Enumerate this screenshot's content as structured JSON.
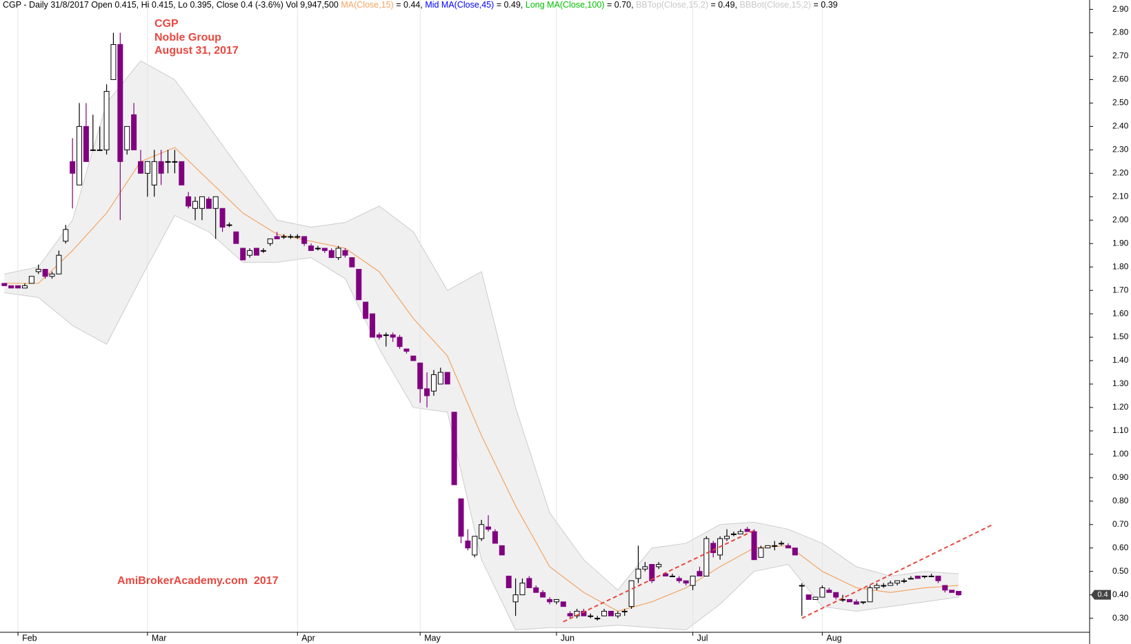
{
  "chart_data": {
    "type": "candlestick",
    "header": [
      {
        "text": "CGP - Daily 31/8/2017 Open 0.415, Hi 0.415, Lo 0.395, Close 0.4 (-3.6%) Vol 9,947,500 ",
        "color": "#000000"
      },
      {
        "text": "MA(Close,15)",
        "color": "#f4a460"
      },
      {
        "text": " = 0.44, ",
        "color": "#000000"
      },
      {
        "text": "Mid MA(Close,45)",
        "color": "#0000ff"
      },
      {
        "text": " = 0.49, ",
        "color": "#000000"
      },
      {
        "text": "Long MA(Close,100)",
        "color": "#00c000"
      },
      {
        "text": " = 0.70, ",
        "color": "#000000"
      },
      {
        "text": "BBTop(Close,15,2)",
        "color": "#c8c8c8"
      },
      {
        "text": " = 0.49, ",
        "color": "#000000"
      },
      {
        "text": "BBBot(Close,15,2)",
        "color": "#c8c8c8"
      },
      {
        "text": " = 0.39",
        "color": "#000000"
      }
    ],
    "annotations": [
      "CGP",
      "Noble Group",
      "August 31, 2017"
    ],
    "watermark": "AmiBrokerAcademy.com  2017",
    "annotation_color": "#e8473f",
    "categories": [
      null,
      null,
      "Feb",
      null,
      null,
      null,
      null,
      null,
      null,
      null,
      null,
      null,
      null,
      null,
      null,
      null,
      null,
      null,
      null,
      null,
      null,
      "Mar",
      null,
      null,
      null,
      null,
      null,
      null,
      null,
      null,
      null,
      null,
      null,
      null,
      null,
      null,
      null,
      null,
      null,
      null,
      null,
      null,
      null,
      "Apr",
      null,
      null,
      null,
      null,
      null,
      null,
      null,
      null,
      null,
      null,
      null,
      null,
      null,
      null,
      null,
      null,
      null,
      "May",
      null,
      null,
      null,
      null,
      null,
      null,
      null,
      null,
      null,
      null,
      null,
      null,
      null,
      null,
      null,
      null,
      null,
      null,
      null,
      "Jun",
      null,
      null,
      null,
      null,
      null,
      null,
      null,
      null,
      null,
      null,
      null,
      null,
      null,
      null,
      null,
      null,
      null,
      null,
      null,
      "Jul",
      null,
      null,
      null,
      null,
      null,
      null,
      null,
      null,
      null,
      null,
      null,
      null,
      null,
      null,
      null,
      null,
      null,
      null,
      "Aug",
      null,
      null,
      null,
      null,
      null,
      null,
      null,
      null,
      null,
      null,
      null,
      null,
      null,
      null,
      null,
      null,
      null,
      null,
      null,
      null
    ],
    "open": [
      1.73,
      1.72,
      1.72,
      1.71,
      1.73,
      1.78,
      1.79,
      1.76,
      1.77,
      1.91,
      2.25,
      2.15,
      2.4,
      2.3,
      2.3,
      2.3,
      2.6,
      2.75,
      2.3,
      2.45,
      2.25,
      2.2,
      2.15,
      2.25,
      2.25,
      2.25,
      2.25,
      2.1,
      2.05,
      2.05,
      2.09,
      2.05,
      2.05,
      1.98,
      1.95,
      1.88,
      1.85,
      1.88,
      1.87,
      1.9,
      1.93,
      1.93,
      1.93,
      1.93,
      1.93,
      1.89,
      1.88,
      1.88,
      1.87,
      1.84,
      1.87,
      1.84,
      1.79,
      1.65,
      1.6,
      1.51,
      1.51,
      1.51,
      1.5,
      1.45,
      1.42,
      1.39,
      1.28,
      1.27,
      1.3,
      1.35,
      1.18,
      0.81,
      0.63,
      0.57,
      0.64,
      0.69,
      0.67,
      0.61,
      0.48,
      0.37,
      0.4,
      0.47,
      0.43,
      0.41,
      0.38,
      0.37,
      0.37,
      0.32,
      0.31,
      0.33,
      0.31,
      0.3,
      0.31,
      0.33,
      0.31,
      0.33,
      0.35,
      0.47,
      0.51,
      0.53,
      0.52,
      0.49,
      0.48,
      0.47,
      0.46,
      0.44,
      0.5,
      0.48,
      0.62,
      0.57,
      0.64,
      0.66,
      0.66,
      0.68,
      0.67,
      0.56,
      0.6,
      0.61,
      0.62,
      0.61,
      0.6,
      0.44,
      0.4,
      0.38,
      0.39,
      0.42,
      0.41,
      0.38,
      0.38,
      0.37,
      0.37,
      0.37,
      0.43,
      0.44,
      0.44,
      0.45,
      0.46,
      0.47,
      0.48,
      0.48,
      0.48,
      0.48,
      0.44,
      0.42,
      0.415
    ],
    "high": [
      1.73,
      1.72,
      1.72,
      1.73,
      1.76,
      1.81,
      1.79,
      1.78,
      1.87,
      1.98,
      2.35,
      2.5,
      2.5,
      2.45,
      2.4,
      2.58,
      2.8,
      2.8,
      2.4,
      2.5,
      2.3,
      2.25,
      2.3,
      2.3,
      2.3,
      2.3,
      2.25,
      2.12,
      2.1,
      2.1,
      2.1,
      2.1,
      2.05,
      1.99,
      1.95,
      1.88,
      1.88,
      1.88,
      1.88,
      1.92,
      1.95,
      1.94,
      1.94,
      1.94,
      1.93,
      1.9,
      1.89,
      1.88,
      1.88,
      1.89,
      1.88,
      1.84,
      1.79,
      1.65,
      1.6,
      1.52,
      1.52,
      1.52,
      1.51,
      1.45,
      1.42,
      1.39,
      1.35,
      1.36,
      1.37,
      1.35,
      1.18,
      0.81,
      0.68,
      0.65,
      0.72,
      0.74,
      0.68,
      0.61,
      0.48,
      0.47,
      0.47,
      0.48,
      0.44,
      0.42,
      0.39,
      0.38,
      0.37,
      0.33,
      0.34,
      0.34,
      0.32,
      0.31,
      0.34,
      0.33,
      0.33,
      0.34,
      0.46,
      0.61,
      0.54,
      0.53,
      0.54,
      0.49,
      0.49,
      0.48,
      0.46,
      0.48,
      0.52,
      0.65,
      0.63,
      0.65,
      0.68,
      0.67,
      0.68,
      0.69,
      0.68,
      0.61,
      0.61,
      0.63,
      0.63,
      0.62,
      0.6,
      0.45,
      0.4,
      0.39,
      0.44,
      0.43,
      0.41,
      0.4,
      0.38,
      0.38,
      0.37,
      0.44,
      0.45,
      0.45,
      0.46,
      0.46,
      0.47,
      0.48,
      0.48,
      0.48,
      0.49,
      0.48,
      0.44,
      0.42,
      0.415
    ],
    "low": [
      1.72,
      1.71,
      1.71,
      1.71,
      1.73,
      1.77,
      1.75,
      1.75,
      1.77,
      1.9,
      2.05,
      2.15,
      2.25,
      2.3,
      2.3,
      2.28,
      2.6,
      2.0,
      2.28,
      2.3,
      2.2,
      2.1,
      2.1,
      2.15,
      2.2,
      2.2,
      2.15,
      2.05,
      2.0,
      2.0,
      2.05,
      1.92,
      1.95,
      1.97,
      1.9,
      1.83,
      1.84,
      1.85,
      1.86,
      1.89,
      1.92,
      1.92,
      1.92,
      1.92,
      1.89,
      1.87,
      1.87,
      1.86,
      1.84,
      1.83,
      1.84,
      1.8,
      1.66,
      1.58,
      1.5,
      1.49,
      1.46,
      1.48,
      1.45,
      1.43,
      1.4,
      1.22,
      1.2,
      1.25,
      1.3,
      1.3,
      0.87,
      0.62,
      0.59,
      0.56,
      0.63,
      0.67,
      0.62,
      0.57,
      0.43,
      0.31,
      0.4,
      0.43,
      0.41,
      0.39,
      0.36,
      0.36,
      0.35,
      0.3,
      0.3,
      0.31,
      0.3,
      0.29,
      0.31,
      0.31,
      0.3,
      0.31,
      0.34,
      0.45,
      0.5,
      0.45,
      0.51,
      0.48,
      0.48,
      0.45,
      0.44,
      0.42,
      0.48,
      0.48,
      0.56,
      0.55,
      0.63,
      0.65,
      0.66,
      0.67,
      0.55,
      0.56,
      0.6,
      0.59,
      0.61,
      0.6,
      0.57,
      0.31,
      0.38,
      0.38,
      0.39,
      0.41,
      0.38,
      0.37,
      0.37,
      0.36,
      0.36,
      0.37,
      0.42,
      0.43,
      0.44,
      0.44,
      0.45,
      0.47,
      0.47,
      0.47,
      0.48,
      0.45,
      0.41,
      0.41,
      0.395
    ],
    "close": [
      1.72,
      1.71,
      1.71,
      1.72,
      1.76,
      1.79,
      1.76,
      1.77,
      1.85,
      1.96,
      2.2,
      2.4,
      2.25,
      2.3,
      2.3,
      2.55,
      2.75,
      2.25,
      2.4,
      2.3,
      2.2,
      2.25,
      2.25,
      2.2,
      2.25,
      2.25,
      2.15,
      2.06,
      2.08,
      2.1,
      2.05,
      2.1,
      1.97,
      1.98,
      1.9,
      1.83,
      1.87,
      1.85,
      1.87,
      1.92,
      1.92,
      1.93,
      1.93,
      1.93,
      1.9,
      1.87,
      1.88,
      1.87,
      1.84,
      1.88,
      1.85,
      1.8,
      1.66,
      1.58,
      1.5,
      1.5,
      1.51,
      1.5,
      1.46,
      1.44,
      1.4,
      1.28,
      1.25,
      1.34,
      1.35,
      1.3,
      0.87,
      0.65,
      0.6,
      0.65,
      0.7,
      0.68,
      0.62,
      0.57,
      0.43,
      0.4,
      0.45,
      0.43,
      0.41,
      0.39,
      0.37,
      0.38,
      0.35,
      0.31,
      0.33,
      0.31,
      0.31,
      0.3,
      0.33,
      0.31,
      0.32,
      0.33,
      0.46,
      0.51,
      0.52,
      0.46,
      0.53,
      0.48,
      0.48,
      0.46,
      0.45,
      0.48,
      0.48,
      0.64,
      0.58,
      0.64,
      0.65,
      0.66,
      0.67,
      0.67,
      0.55,
      0.6,
      0.61,
      0.61,
      0.62,
      0.6,
      0.57,
      0.44,
      0.38,
      0.39,
      0.43,
      0.41,
      0.39,
      0.38,
      0.37,
      0.36,
      0.37,
      0.43,
      0.44,
      0.44,
      0.45,
      0.46,
      0.46,
      0.47,
      0.47,
      0.48,
      0.48,
      0.46,
      0.42,
      0.41,
      0.4
    ],
    "up_color": "#ffffff",
    "down_color": "#800080",
    "outline_color": "#000000",
    "moving_average": {
      "color": "#f4a460",
      "x": [
        0,
        5,
        10,
        15,
        20,
        25,
        30,
        35,
        40,
        45,
        50,
        55,
        60,
        65,
        70,
        75,
        80,
        85,
        90,
        95,
        100,
        105,
        110,
        115,
        120,
        125,
        130,
        135,
        140
      ],
      "values": [
        1.73,
        1.73,
        1.87,
        2.03,
        2.25,
        2.31,
        2.17,
        2.03,
        1.94,
        1.91,
        1.88,
        1.78,
        1.58,
        1.42,
        1.08,
        0.78,
        0.52,
        0.41,
        0.33,
        0.37,
        0.43,
        0.52,
        0.6,
        0.61,
        0.5,
        0.43,
        0.41,
        0.43,
        0.44
      ]
    },
    "band": {
      "color": "#f0f0f0",
      "edge_color": "#cccccc",
      "x": [
        0,
        5,
        10,
        15,
        20,
        25,
        30,
        35,
        40,
        45,
        50,
        55,
        60,
        65,
        70,
        75,
        80,
        85,
        90,
        95,
        100,
        105,
        110,
        115,
        120,
        125,
        130,
        135,
        140
      ],
      "upper": [
        1.77,
        1.8,
        2.0,
        2.5,
        2.68,
        2.6,
        2.4,
        2.2,
        2.0,
        1.97,
        1.99,
        2.06,
        1.95,
        1.7,
        1.78,
        1.2,
        0.75,
        0.55,
        0.42,
        0.6,
        0.62,
        0.7,
        0.71,
        0.68,
        0.62,
        0.52,
        0.48,
        0.5,
        0.49
      ],
      "lower": [
        1.69,
        1.67,
        1.55,
        1.47,
        1.75,
        2.02,
        1.95,
        1.82,
        1.82,
        1.84,
        1.75,
        1.45,
        1.2,
        1.18,
        0.55,
        0.25,
        0.26,
        0.26,
        0.27,
        0.26,
        0.25,
        0.36,
        0.5,
        0.53,
        0.35,
        0.33,
        0.35,
        0.37,
        0.39
      ]
    },
    "trend_lines": [
      {
        "color": "#e8473f",
        "x": [
          82,
          110
        ],
        "values": [
          0.285,
          0.675
        ]
      },
      {
        "color": "#e8473f",
        "x": [
          117,
          145
        ],
        "values": [
          0.3,
          0.7
        ]
      }
    ],
    "ylim": [
      0.24,
      2.94
    ],
    "yticks": [
      {
        "value": 0.3,
        "label": "0.30"
      },
      {
        "value": 0.4,
        "label": "0.40"
      },
      {
        "value": 0.5,
        "label": "0.50"
      },
      {
        "value": 0.6,
        "label": "0.60"
      },
      {
        "value": 0.7,
        "label": "0.70"
      },
      {
        "value": 0.8,
        "label": "0.80"
      },
      {
        "value": 0.9,
        "label": "0.90"
      },
      {
        "value": 1.0,
        "label": "1.00"
      },
      {
        "value": 1.1,
        "label": "1.10"
      },
      {
        "value": 1.2,
        "label": "1.20"
      },
      {
        "value": 1.3,
        "label": "1.30"
      },
      {
        "value": 1.4,
        "label": "1.40"
      },
      {
        "value": 1.5,
        "label": "1.50"
      },
      {
        "value": 1.6,
        "label": "1.60"
      },
      {
        "value": 1.7,
        "label": "1.70"
      },
      {
        "value": 1.8,
        "label": "1.80"
      },
      {
        "value": 1.9,
        "label": "1.90"
      },
      {
        "value": 2.0,
        "label": "2.00"
      },
      {
        "value": 2.1,
        "label": "2.10"
      },
      {
        "value": 2.2,
        "label": "2.20"
      },
      {
        "value": 2.3,
        "label": "2.30"
      },
      {
        "value": 2.4,
        "label": "2.40"
      },
      {
        "value": 2.5,
        "label": "2.50"
      },
      {
        "value": 2.6,
        "label": "2.60"
      },
      {
        "value": 2.7,
        "label": "2.70"
      },
      {
        "value": 2.8,
        "label": "2.80"
      },
      {
        "value": 2.9,
        "label": "2.90"
      }
    ],
    "grid": true
  }
}
